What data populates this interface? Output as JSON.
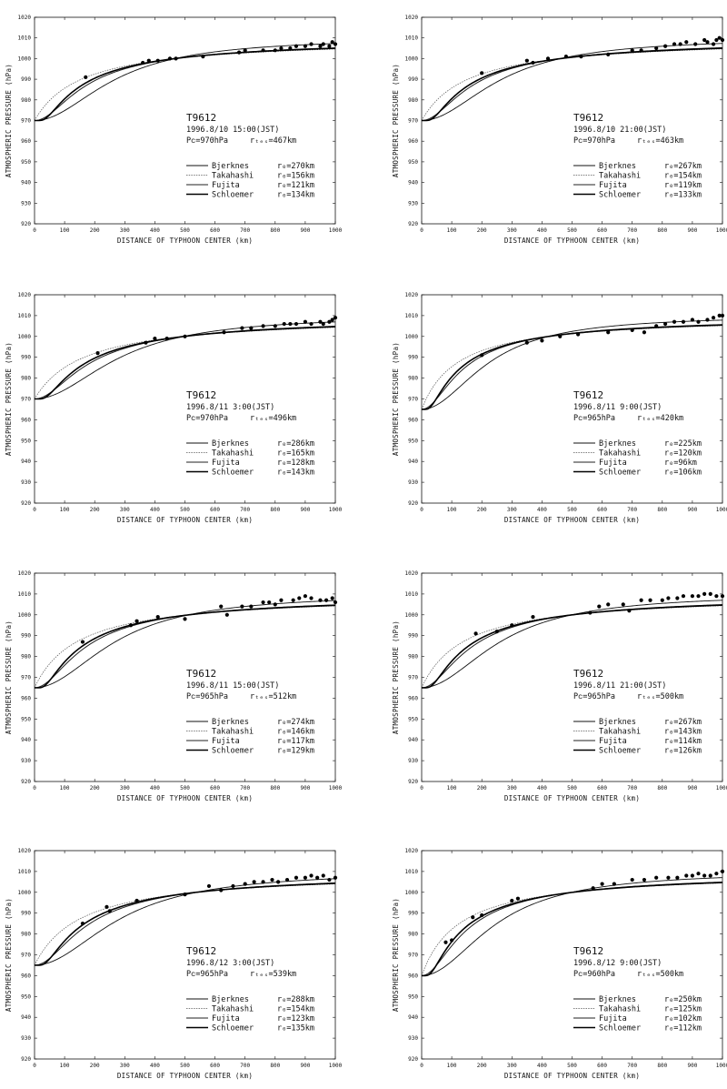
{
  "chart_data": [
    {
      "type": "line",
      "typhoon": "T9612",
      "datetime": "1996.8/10 15:00(JST)",
      "pc_text": "Pᴄ=970hPa",
      "rtext": "rₜₑₛ=467km",
      "pc": 970,
      "xlabel": "DISTANCE OF TYPHOON CENTER  (km)",
      "ylabel": "ATMOSPHERIC PRESSURE  (hPa)",
      "xlim": [
        0,
        1000
      ],
      "ylim": [
        920,
        1020
      ],
      "xticks": [
        "0",
        "100",
        "200",
        "300",
        "400",
        "500",
        "600",
        "700",
        "800",
        "900",
        "1000"
      ],
      "yticks": [
        "920",
        "930",
        "940",
        "950",
        "960",
        "970",
        "980",
        "990",
        "1000",
        "1010",
        "1020"
      ],
      "series": [
        {
          "name": "Bjerknes",
          "r_text": "r₀=270km",
          "r": 270
        },
        {
          "name": "Takahashi",
          "r_text": "r₀=156km",
          "r": 156
        },
        {
          "name": "Fujita",
          "r_text": "r₀=121km",
          "r": 121
        },
        {
          "name": "Schloemer",
          "r_text": "r₀=134km",
          "r": 134
        }
      ],
      "points": [
        [
          170,
          991
        ],
        [
          360,
          998
        ],
        [
          380,
          999
        ],
        [
          410,
          999
        ],
        [
          450,
          1000
        ],
        [
          470,
          1000
        ],
        [
          560,
          1001
        ],
        [
          680,
          1003
        ],
        [
          700,
          1004
        ],
        [
          760,
          1004
        ],
        [
          800,
          1004
        ],
        [
          820,
          1005
        ],
        [
          850,
          1005
        ],
        [
          870,
          1006
        ],
        [
          900,
          1006
        ],
        [
          920,
          1007
        ],
        [
          950,
          1006
        ],
        [
          960,
          1007
        ],
        [
          980,
          1006
        ],
        [
          990,
          1008
        ],
        [
          1000,
          1007
        ]
      ]
    },
    {
      "type": "line",
      "typhoon": "T9612",
      "datetime": "1996.8/10 21:00(JST)",
      "pc_text": "Pᴄ=970hPa",
      "rtext": "rₜₑₛ=463km",
      "pc": 970,
      "xlabel": "DISTANCE OF TYPHOON CENTER  (km)",
      "ylabel": "ATMOSPHERIC PRESSURE  (hPa)",
      "xlim": [
        0,
        1000
      ],
      "ylim": [
        920,
        1020
      ],
      "xticks": [
        "0",
        "100",
        "200",
        "300",
        "400",
        "500",
        "600",
        "700",
        "800",
        "900",
        "1000"
      ],
      "yticks": [
        "920",
        "930",
        "940",
        "950",
        "960",
        "970",
        "980",
        "990",
        "1000",
        "1010",
        "1020"
      ],
      "series": [
        {
          "name": "Bjerknes",
          "r_text": "r₀=267km",
          "r": 267
        },
        {
          "name": "Takahashi",
          "r_text": "r₀=154km",
          "r": 154
        },
        {
          "name": "Fujita",
          "r_text": "r₀=119km",
          "r": 119
        },
        {
          "name": "Schloemer",
          "r_text": "r₀=133km",
          "r": 133
        }
      ],
      "points": [
        [
          200,
          993
        ],
        [
          350,
          999
        ],
        [
          370,
          998
        ],
        [
          420,
          1000
        ],
        [
          480,
          1001
        ],
        [
          530,
          1001
        ],
        [
          620,
          1002
        ],
        [
          700,
          1004
        ],
        [
          730,
          1004
        ],
        [
          780,
          1005
        ],
        [
          810,
          1006
        ],
        [
          840,
          1007
        ],
        [
          860,
          1007
        ],
        [
          880,
          1008
        ],
        [
          910,
          1007
        ],
        [
          940,
          1009
        ],
        [
          950,
          1008
        ],
        [
          970,
          1007
        ],
        [
          980,
          1009
        ],
        [
          990,
          1010
        ],
        [
          1000,
          1009
        ]
      ]
    },
    {
      "type": "line",
      "typhoon": "T9612",
      "datetime": "1996.8/11 3:00(JST)",
      "pc_text": "Pᴄ=970hPa",
      "rtext": "rₜₑₛ=496km",
      "pc": 970,
      "xlabel": "DISTANCE OF TYPHOON CENTER  (km)",
      "ylabel": "ATMOSPHERIC PRESSURE  (hPa)",
      "xlim": [
        0,
        1000
      ],
      "ylim": [
        920,
        1020
      ],
      "xticks": [
        "0",
        "100",
        "200",
        "300",
        "400",
        "500",
        "600",
        "700",
        "800",
        "900",
        "1000"
      ],
      "yticks": [
        "920",
        "930",
        "940",
        "950",
        "960",
        "970",
        "980",
        "990",
        "1000",
        "1010",
        "1020"
      ],
      "series": [
        {
          "name": "Bjerknes",
          "r_text": "r₀=286km",
          "r": 286
        },
        {
          "name": "Takahashi",
          "r_text": "r₀=165km",
          "r": 165
        },
        {
          "name": "Fujita",
          "r_text": "r₀=128km",
          "r": 128
        },
        {
          "name": "Schloemer",
          "r_text": "r₀=143km",
          "r": 143
        }
      ],
      "points": [
        [
          210,
          992
        ],
        [
          370,
          997
        ],
        [
          400,
          999
        ],
        [
          440,
          999
        ],
        [
          500,
          1000
        ],
        [
          630,
          1002
        ],
        [
          690,
          1004
        ],
        [
          720,
          1004
        ],
        [
          760,
          1005
        ],
        [
          800,
          1005
        ],
        [
          830,
          1006
        ],
        [
          850,
          1006
        ],
        [
          870,
          1006
        ],
        [
          900,
          1007
        ],
        [
          920,
          1006
        ],
        [
          950,
          1007
        ],
        [
          960,
          1006
        ],
        [
          980,
          1007
        ],
        [
          990,
          1008
        ],
        [
          1000,
          1009
        ]
      ]
    },
    {
      "type": "line",
      "typhoon": "T9612",
      "datetime": "1996.8/11 9:00(JST)",
      "pc_text": "Pᴄ=965hPa",
      "rtext": "rₜₑₛ=420km",
      "pc": 965,
      "xlabel": "DISTANCE OF TYPHOON CENTER  (km)",
      "ylabel": "ATMOSPHERIC PRESSURE  (hPa)",
      "xlim": [
        0,
        1000
      ],
      "ylim": [
        920,
        1020
      ],
      "xticks": [
        "0",
        "100",
        "200",
        "300",
        "400",
        "500",
        "600",
        "700",
        "800",
        "900",
        "1000"
      ],
      "yticks": [
        "920",
        "930",
        "940",
        "950",
        "960",
        "970",
        "980",
        "990",
        "1000",
        "1010",
        "1020"
      ],
      "series": [
        {
          "name": "Bjerknes",
          "r_text": "r₀=225km",
          "r": 225
        },
        {
          "name": "Takahashi",
          "r_text": "r₀=120km",
          "r": 120
        },
        {
          "name": "Fujita",
          "r_text": "r₀=96km",
          "r": 96
        },
        {
          "name": "Schloemer",
          "r_text": "r₀=106km",
          "r": 106
        }
      ],
      "points": [
        [
          200,
          991
        ],
        [
          350,
          997
        ],
        [
          400,
          998
        ],
        [
          460,
          1000
        ],
        [
          520,
          1001
        ],
        [
          620,
          1002
        ],
        [
          700,
          1003
        ],
        [
          740,
          1002
        ],
        [
          780,
          1005
        ],
        [
          810,
          1006
        ],
        [
          840,
          1007
        ],
        [
          870,
          1007
        ],
        [
          900,
          1008
        ],
        [
          920,
          1007
        ],
        [
          950,
          1008
        ],
        [
          970,
          1009
        ],
        [
          990,
          1010
        ],
        [
          1000,
          1010
        ]
      ]
    },
    {
      "type": "line",
      "typhoon": "T9612",
      "datetime": "1996.8/11 15:00(JST)",
      "pc_text": "Pᴄ=965hPa",
      "rtext": "rₜₑₛ=512km",
      "pc": 965,
      "xlabel": "DISTANCE OF TYPHOON CENTER  (km)",
      "ylabel": "ATMOSPHERIC PRESSURE  (hPa)",
      "xlim": [
        0,
        1000
      ],
      "ylim": [
        920,
        1020
      ],
      "xticks": [
        "0",
        "100",
        "200",
        "300",
        "400",
        "500",
        "600",
        "700",
        "800",
        "900",
        "1000"
      ],
      "yticks": [
        "920",
        "930",
        "940",
        "950",
        "960",
        "970",
        "980",
        "990",
        "1000",
        "1010",
        "1020"
      ],
      "series": [
        {
          "name": "Bjerknes",
          "r_text": "r₀=274km",
          "r": 274
        },
        {
          "name": "Takahashi",
          "r_text": "r₀=146km",
          "r": 146
        },
        {
          "name": "Fujita",
          "r_text": "r₀=117km",
          "r": 117
        },
        {
          "name": "Schloemer",
          "r_text": "r₀=129km",
          "r": 129
        }
      ],
      "points": [
        [
          160,
          987
        ],
        [
          320,
          995
        ],
        [
          340,
          997
        ],
        [
          410,
          999
        ],
        [
          500,
          998
        ],
        [
          620,
          1004
        ],
        [
          640,
          1000
        ],
        [
          690,
          1004
        ],
        [
          720,
          1004
        ],
        [
          760,
          1006
        ],
        [
          780,
          1006
        ],
        [
          800,
          1005
        ],
        [
          820,
          1007
        ],
        [
          860,
          1007
        ],
        [
          880,
          1008
        ],
        [
          900,
          1009
        ],
        [
          920,
          1008
        ],
        [
          950,
          1007
        ],
        [
          970,
          1007
        ],
        [
          990,
          1008
        ],
        [
          1000,
          1006
        ]
      ]
    },
    {
      "type": "line",
      "typhoon": "T9612",
      "datetime": "1996.8/11 21:00(JST)",
      "pc_text": "Pᴄ=965hPa",
      "rtext": "rₜₑₛ=500km",
      "pc": 965,
      "xlabel": "DISTANCE OF TYPHOON CENTER  (km)",
      "ylabel": "ATMOSPHERIC PRESSURE  (hPa)",
      "xlim": [
        0,
        1000
      ],
      "ylim": [
        920,
        1020
      ],
      "xticks": [
        "0",
        "100",
        "200",
        "300",
        "400",
        "500",
        "600",
        "700",
        "800",
        "900",
        "1000"
      ],
      "yticks": [
        "920",
        "930",
        "940",
        "950",
        "960",
        "970",
        "980",
        "990",
        "1000",
        "1010",
        "1020"
      ],
      "series": [
        {
          "name": "Bjerknes",
          "r_text": "r₀=267km",
          "r": 267
        },
        {
          "name": "Takahashi",
          "r_text": "r₀=143km",
          "r": 143
        },
        {
          "name": "Fujita",
          "r_text": "r₀=114km",
          "r": 114
        },
        {
          "name": "Schloemer",
          "r_text": "r₀=126km",
          "r": 126
        }
      ],
      "points": [
        [
          180,
          991
        ],
        [
          250,
          992
        ],
        [
          300,
          995
        ],
        [
          370,
          999
        ],
        [
          560,
          1001
        ],
        [
          590,
          1004
        ],
        [
          620,
          1005
        ],
        [
          670,
          1005
        ],
        [
          690,
          1002
        ],
        [
          730,
          1007
        ],
        [
          760,
          1007
        ],
        [
          800,
          1007
        ],
        [
          820,
          1008
        ],
        [
          850,
          1008
        ],
        [
          870,
          1009
        ],
        [
          900,
          1009
        ],
        [
          920,
          1009
        ],
        [
          940,
          1010
        ],
        [
          960,
          1010
        ],
        [
          980,
          1009
        ],
        [
          1000,
          1009
        ]
      ]
    },
    {
      "type": "line",
      "typhoon": "T9612",
      "datetime": "1996.8/12 3:00(JST)",
      "pc_text": "Pᴄ=965hPa",
      "rtext": "rₜₑₛ=539km",
      "pc": 965,
      "xlabel": "DISTANCE OF TYPHOON CENTER  (km)",
      "ylabel": "ATMOSPHERIC PRESSURE  (hPa)",
      "xlim": [
        0,
        1000
      ],
      "ylim": [
        920,
        1020
      ],
      "xticks": [
        "0",
        "100",
        "200",
        "300",
        "400",
        "500",
        "600",
        "700",
        "800",
        "900",
        "1000"
      ],
      "yticks": [
        "920",
        "930",
        "940",
        "950",
        "960",
        "970",
        "980",
        "990",
        "1000",
        "1010",
        "1020"
      ],
      "series": [
        {
          "name": "Bjerknes",
          "r_text": "r₀=288km",
          "r": 288
        },
        {
          "name": "Takahashi",
          "r_text": "r₀=154km",
          "r": 154
        },
        {
          "name": "Fujita",
          "r_text": "r₀=123km",
          "r": 123
        },
        {
          "name": "Schloemer",
          "r_text": "r₀=135km",
          "r": 135
        }
      ],
      "points": [
        [
          160,
          985
        ],
        [
          240,
          993
        ],
        [
          250,
          991
        ],
        [
          340,
          996
        ],
        [
          500,
          999
        ],
        [
          580,
          1003
        ],
        [
          620,
          1001
        ],
        [
          660,
          1003
        ],
        [
          700,
          1004
        ],
        [
          730,
          1005
        ],
        [
          760,
          1005
        ],
        [
          790,
          1006
        ],
        [
          810,
          1005
        ],
        [
          840,
          1006
        ],
        [
          870,
          1007
        ],
        [
          900,
          1007
        ],
        [
          920,
          1008
        ],
        [
          940,
          1007
        ],
        [
          960,
          1008
        ],
        [
          980,
          1006
        ],
        [
          1000,
          1007
        ]
      ]
    },
    {
      "type": "line",
      "typhoon": "T9612",
      "datetime": "1996.8/12 9:00(JST)",
      "pc_text": "Pᴄ=960hPa",
      "rtext": "rₜₑₛ=500km",
      "pc": 960,
      "xlabel": "DISTANCE OF TYPHOON CENTER  (km)",
      "ylabel": "ATMOSPHERIC PRESSURE  (hPa)",
      "xlim": [
        0,
        1000
      ],
      "ylim": [
        920,
        1020
      ],
      "xticks": [
        "0",
        "100",
        "200",
        "300",
        "400",
        "500",
        "600",
        "700",
        "800",
        "900",
        "1000"
      ],
      "yticks": [
        "920",
        "930",
        "940",
        "950",
        "960",
        "970",
        "980",
        "990",
        "1000",
        "1010",
        "1020"
      ],
      "series": [
        {
          "name": "Bjerknes",
          "r_text": "r₀=250km",
          "r": 250
        },
        {
          "name": "Takahashi",
          "r_text": "r₀=125km",
          "r": 125
        },
        {
          "name": "Fujita",
          "r_text": "r₀=102km",
          "r": 102
        },
        {
          "name": "Schloemer",
          "r_text": "r₀=112km",
          "r": 112
        }
      ],
      "points": [
        [
          80,
          976
        ],
        [
          100,
          977
        ],
        [
          170,
          988
        ],
        [
          200,
          989
        ],
        [
          300,
          996
        ],
        [
          320,
          997
        ],
        [
          570,
          1002
        ],
        [
          600,
          1004
        ],
        [
          640,
          1004
        ],
        [
          700,
          1006
        ],
        [
          740,
          1006
        ],
        [
          780,
          1007
        ],
        [
          820,
          1007
        ],
        [
          850,
          1007
        ],
        [
          880,
          1008
        ],
        [
          900,
          1008
        ],
        [
          920,
          1009
        ],
        [
          940,
          1008
        ],
        [
          960,
          1008
        ],
        [
          980,
          1009
        ],
        [
          1000,
          1010
        ]
      ]
    }
  ]
}
